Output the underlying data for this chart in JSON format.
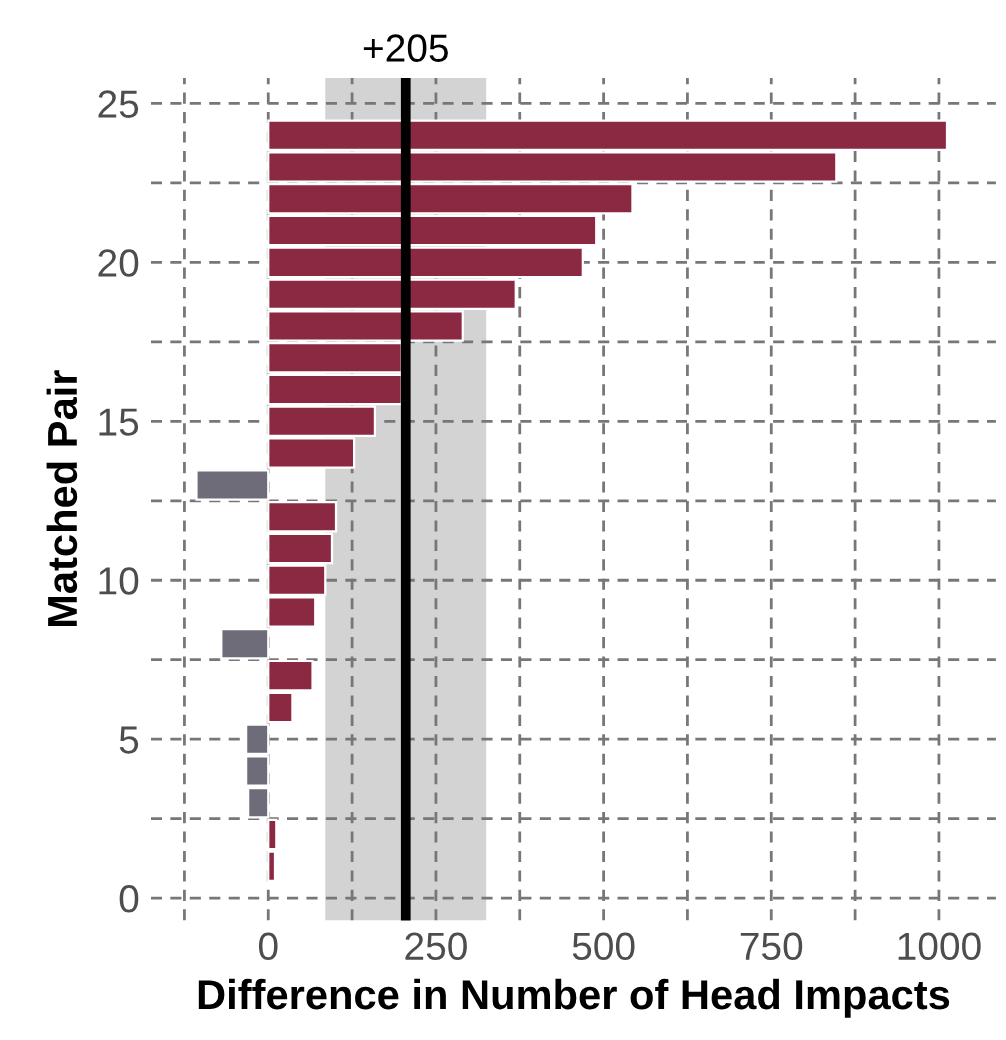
{
  "chart_data": {
    "type": "bar",
    "orientation": "horizontal",
    "xlabel": "Difference in Number of Head Impacts",
    "ylabel": "Matched Pair",
    "x": [
      1,
      2,
      3,
      4,
      5,
      6,
      7,
      8,
      9,
      10,
      11,
      12,
      13,
      14,
      15,
      16,
      17,
      18,
      19,
      20,
      21,
      22,
      23,
      24
    ],
    "values": [
      10,
      12,
      -30,
      -33,
      -33,
      36,
      66,
      -70,
      70,
      85,
      95,
      101,
      -107,
      128,
      159,
      199,
      199,
      290,
      369,
      469,
      489,
      543,
      847,
      1012
    ],
    "colors": [
      "#8b2942",
      "#8b2942",
      "#6e6c78",
      "#6e6c78",
      "#6e6c78",
      "#8b2942",
      "#8b2942",
      "#6e6c78",
      "#8b2942",
      "#8b2942",
      "#8b2942",
      "#8b2942",
      "#6e6c78",
      "#8b2942",
      "#8b2942",
      "#8b2942",
      "#8b2942",
      "#8b2942",
      "#8b2942",
      "#8b2942",
      "#8b2942",
      "#8b2942",
      "#8b2942",
      "#8b2942"
    ],
    "xlim": [
      -175,
      1085
    ],
    "ylim": [
      -0.7,
      25.8
    ],
    "xticks": [
      {
        "value": -125,
        "label": null
      },
      0,
      {
        "value": 125,
        "label": null
      },
      250,
      {
        "value": 375,
        "label": null
      },
      500,
      {
        "value": 625,
        "label": null
      },
      750,
      {
        "value": 875,
        "label": null
      },
      1000
    ],
    "yticks": [
      0,
      {
        "value": 2.5,
        "label": null
      },
      5,
      {
        "value": 7.5,
        "label": null
      },
      10,
      {
        "value": 12.5,
        "label": null
      },
      15,
      {
        "value": 17.5,
        "label": null
      },
      20,
      {
        "value": 22.5,
        "label": null
      },
      25
    ],
    "grid": true,
    "ref_lines": [
      {
        "axis": "x",
        "value": 205,
        "label": "+205",
        "color": "#000000"
      }
    ],
    "bands": [
      {
        "axis": "x",
        "from": 85,
        "to": 325,
        "color": "#d3d3d3"
      }
    ]
  }
}
